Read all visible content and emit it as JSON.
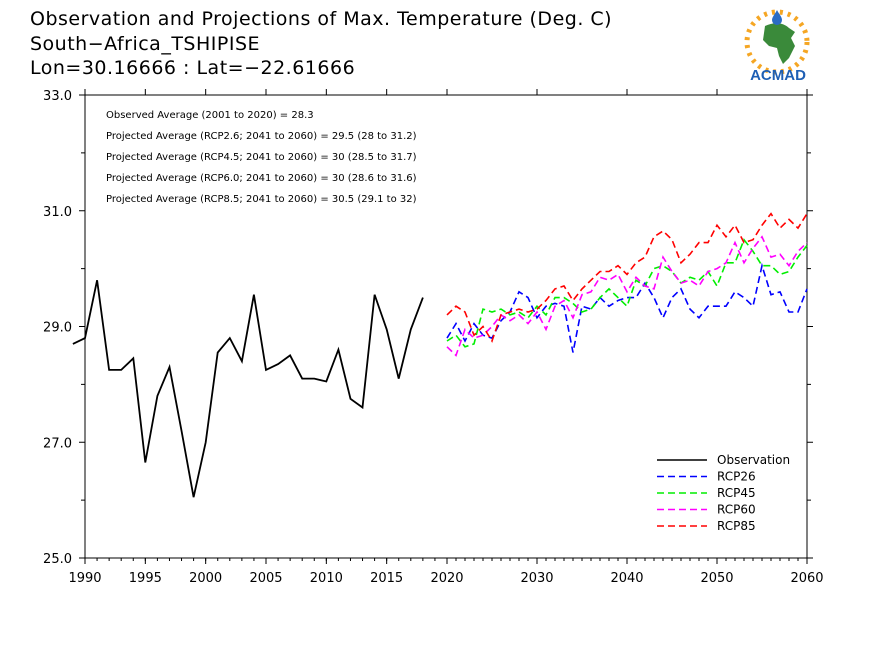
{
  "header": {
    "title": "Observation and Projections of Max. Temperature (Deg. C)",
    "location": "South−Africa_TSHIPISE",
    "coords": "Lon=30.16666 : Lat=−22.61666"
  },
  "logo": {
    "name": "ACMAD",
    "colors": {
      "africa": "#3a8a3a",
      "sun": "#f5a623",
      "drop": "#2b6cc4",
      "text": "#1e5fb4"
    }
  },
  "chart_data": {
    "type": "line",
    "xlim": [
      1990,
      2060
    ],
    "ylim": [
      25.0,
      33.0
    ],
    "x_ticks": [
      "1990",
      "1995",
      "2000",
      "2005",
      "2010",
      "2015",
      "2020",
      "2030",
      "2040",
      "2050",
      "2060"
    ],
    "y_ticks": [
      "25.0",
      "27.0",
      "29.0",
      "31.0",
      "33.0"
    ],
    "annotations": [
      "Observed Average (2001 to 2020) = 28.3",
      "Projected Average (RCP2.6; 2041 to 2060) = 29.5 (28 to 31.2)",
      "Projected Average (RCP4.5; 2041 to 2060) = 30 (28.5 to 31.7)",
      "Projected Average (RCP6.0; 2041 to 2060) = 30 (28.6 to 31.6)",
      "Projected Average (RCP8.5; 2041 to 2060) = 30.5 (29.1 to 32)"
    ],
    "legend_position": "bottom-right",
    "series": [
      {
        "name": "Observation",
        "color": "#000000",
        "dash": false,
        "x": [
          1989,
          1990,
          1991,
          1992,
          1993,
          1994,
          1995,
          1996,
          1997,
          1998,
          1999,
          2000,
          2001,
          2002,
          2003,
          2004,
          2005,
          2006,
          2007,
          2008,
          2009,
          2010,
          2011,
          2012,
          2013,
          2014,
          2015,
          2016,
          2017,
          2018,
          2019
        ],
        "y": [
          28.7,
          28.8,
          29.8,
          28.25,
          28.25,
          28.45,
          26.65,
          27.8,
          28.3,
          27.2,
          26.05,
          27.0,
          28.55,
          28.8,
          28.4,
          29.55,
          28.25,
          28.35,
          28.5,
          28.1,
          28.1,
          28.05,
          28.6,
          27.75,
          27.6,
          29.55,
          28.95,
          28.1,
          28.95,
          29.5,
          null
        ]
      },
      {
        "name": "RCP26",
        "color": "#0000ff",
        "dash": true,
        "x": [
          2020,
          2021,
          2022,
          2023,
          2024,
          2025,
          2026,
          2027,
          2028,
          2029,
          2030,
          2031,
          2032,
          2033,
          2034,
          2035,
          2036,
          2037,
          2038,
          2039,
          2040,
          2041,
          2042,
          2043,
          2044,
          2045,
          2046,
          2047,
          2048,
          2049,
          2050,
          2051,
          2052,
          2053,
          2054,
          2055,
          2056,
          2057,
          2058,
          2059,
          2060
        ],
        "y": [
          28.8,
          29.05,
          28.75,
          29.05,
          28.85,
          28.8,
          29.1,
          29.25,
          29.6,
          29.5,
          29.15,
          29.35,
          29.4,
          29.35,
          28.55,
          29.35,
          29.3,
          29.5,
          29.35,
          29.45,
          29.5,
          29.5,
          29.75,
          29.5,
          29.15,
          29.5,
          29.65,
          29.3,
          29.15,
          29.35,
          29.35,
          29.35,
          29.6,
          29.5,
          29.35,
          30.05,
          29.55,
          29.6,
          29.25,
          29.25,
          29.65
        ]
      },
      {
        "name": "RCP45",
        "color": "#00ee00",
        "dash": true,
        "x": [
          2020,
          2021,
          2022,
          2023,
          2024,
          2025,
          2026,
          2027,
          2028,
          2029,
          2030,
          2031,
          2032,
          2033,
          2034,
          2035,
          2036,
          2037,
          2038,
          2039,
          2040,
          2041,
          2042,
          2043,
          2044,
          2045,
          2046,
          2047,
          2048,
          2049,
          2050,
          2051,
          2052,
          2053,
          2054,
          2055,
          2056,
          2057,
          2058,
          2059,
          2060
        ],
        "y": [
          28.75,
          28.85,
          28.65,
          28.7,
          29.3,
          29.25,
          29.3,
          29.2,
          29.25,
          29.15,
          29.35,
          29.2,
          29.5,
          29.5,
          29.4,
          29.25,
          29.3,
          29.5,
          29.65,
          29.5,
          29.35,
          29.8,
          29.7,
          30.0,
          30.05,
          29.95,
          29.75,
          29.85,
          29.8,
          29.95,
          29.7,
          30.1,
          30.1,
          30.5,
          30.3,
          30.05,
          30.05,
          29.9,
          29.95,
          30.2,
          30.4
        ]
      },
      {
        "name": "RCP60",
        "color": "#ff00ff",
        "dash": true,
        "x": [
          2020,
          2021,
          2022,
          2023,
          2024,
          2025,
          2026,
          2027,
          2028,
          2029,
          2030,
          2031,
          2032,
          2033,
          2034,
          2035,
          2036,
          2037,
          2038,
          2039,
          2040,
          2041,
          2042,
          2043,
          2044,
          2045,
          2046,
          2047,
          2048,
          2049,
          2050,
          2051,
          2052,
          2053,
          2054,
          2055,
          2056,
          2057,
          2058,
          2059,
          2060
        ],
        "y": [
          28.65,
          28.5,
          28.95,
          28.8,
          28.85,
          29.0,
          29.2,
          29.1,
          29.2,
          29.05,
          29.25,
          28.95,
          29.35,
          29.45,
          29.15,
          29.55,
          29.6,
          29.85,
          29.8,
          29.9,
          29.6,
          29.85,
          29.7,
          29.65,
          30.2,
          29.95,
          29.75,
          29.8,
          29.7,
          29.95,
          30.0,
          30.1,
          30.45,
          30.1,
          30.35,
          30.55,
          30.2,
          30.25,
          30.05,
          30.3,
          30.45
        ]
      },
      {
        "name": "RCP85",
        "color": "#ff0000",
        "dash": true,
        "x": [
          2020,
          2021,
          2022,
          2023,
          2024,
          2025,
          2026,
          2027,
          2028,
          2029,
          2030,
          2031,
          2032,
          2033,
          2034,
          2035,
          2036,
          2037,
          2038,
          2039,
          2040,
          2041,
          2042,
          2043,
          2044,
          2045,
          2046,
          2047,
          2048,
          2049,
          2050,
          2051,
          2052,
          2053,
          2054,
          2055,
          2056,
          2057,
          2058,
          2059,
          2060
        ],
        "y": [
          29.2,
          29.35,
          29.25,
          28.85,
          29.0,
          28.75,
          29.2,
          29.25,
          29.3,
          29.25,
          29.3,
          29.45,
          29.65,
          29.7,
          29.45,
          29.65,
          29.8,
          29.95,
          29.95,
          30.05,
          29.9,
          30.1,
          30.2,
          30.55,
          30.65,
          30.5,
          30.1,
          30.25,
          30.45,
          30.45,
          30.75,
          30.55,
          30.75,
          30.45,
          30.5,
          30.75,
          30.95,
          30.7,
          30.85,
          30.7,
          30.95
        ]
      }
    ]
  }
}
